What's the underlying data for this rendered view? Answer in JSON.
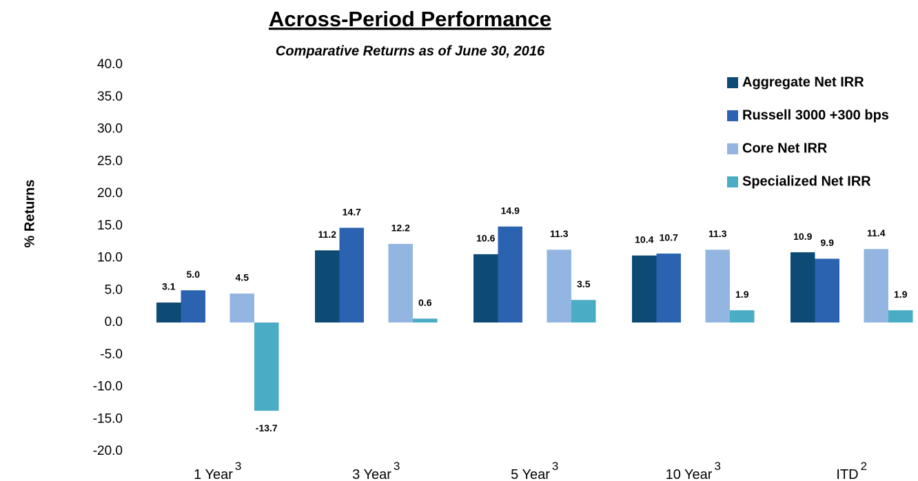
{
  "chart_data": {
    "type": "bar",
    "title": "Across-Period Performance",
    "subtitle": "Comparative Returns as of June 30, 2016",
    "y_label": "% Returns",
    "categories": [
      "1 Year",
      "3 Year",
      "5 Year",
      "10 Year",
      "ITD"
    ],
    "category_notes": [
      "3",
      "3",
      "3",
      "3",
      "2"
    ],
    "series": [
      {
        "name": "Aggregate Net IRR",
        "color": "#0d4a74",
        "values": [
          3.1,
          11.2,
          10.6,
          10.4,
          10.9
        ],
        "value_labels": [
          "3.1",
          "11.2",
          "10.6",
          "10.4",
          "10.9"
        ]
      },
      {
        "name": "Russell 3000 +300 bps",
        "color": "#2b63b0",
        "values": [
          5.0,
          14.7,
          14.9,
          10.7,
          9.9
        ],
        "value_labels": [
          "5.0",
          "14.7",
          "14.9",
          "10.7",
          "9.9"
        ]
      },
      {
        "name": "Core Net IRR",
        "color": "#93b5e1",
        "values": [
          4.5,
          12.2,
          11.3,
          11.3,
          11.4
        ],
        "value_labels": [
          "4.5",
          "12.2",
          "11.3",
          "11.3",
          "11.4"
        ]
      },
      {
        "name": "Specialized Net IRR",
        "color": "#4aacc5",
        "values": [
          -13.7,
          0.6,
          3.5,
          1.9,
          1.9
        ],
        "value_labels": [
          "-13.7",
          "0.6",
          "3.5",
          "1.9",
          "1.9"
        ]
      }
    ],
    "ylim": [
      -20,
      40
    ],
    "yticks": [
      {
        "value": -20,
        "label": "-20.0"
      },
      {
        "value": -15,
        "label": "-15.0"
      },
      {
        "value": -10,
        "label": "-10.0"
      },
      {
        "value": -5,
        "label": "-5.0"
      },
      {
        "value": 0,
        "label": "0.0"
      },
      {
        "value": 5,
        "label": "5.0"
      },
      {
        "value": 10,
        "label": "10.0"
      },
      {
        "value": 15,
        "label": "15.0"
      },
      {
        "value": 20,
        "label": "20.0"
      },
      {
        "value": 25,
        "label": "25.0"
      },
      {
        "value": 30,
        "label": "30.0"
      },
      {
        "value": 35,
        "label": "35.0"
      },
      {
        "value": 40,
        "label": "40.0"
      }
    ],
    "grid": false,
    "legend": "top-right"
  }
}
